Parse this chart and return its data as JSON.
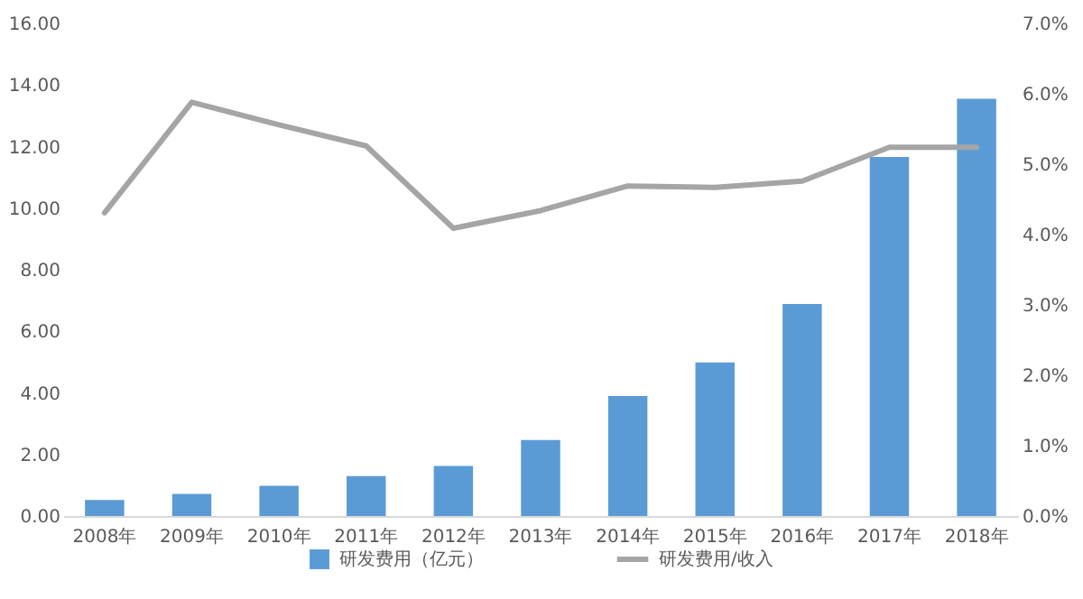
{
  "chart_data": {
    "type": "bar",
    "categories": [
      "2008年",
      "2009年",
      "2010年",
      "2011年",
      "2012年",
      "2013年",
      "2014年",
      "2015年",
      "2016年",
      "2017年",
      "2018年"
    ],
    "series": [
      {
        "name": "研发费用（亿元）",
        "color": "#5b9bd5",
        "values": [
          0.52,
          0.72,
          0.98,
          1.3,
          1.63,
          2.47,
          3.9,
          4.99,
          6.89,
          11.66,
          13.55
        ]
      },
      {
        "name": "研发费用/收入",
        "type": "line",
        "axis": "y2",
        "color": "#a5a5a5",
        "values": [
          4.31,
          5.88,
          5.56,
          5.26,
          4.09,
          4.34,
          4.69,
          4.67,
          4.76,
          5.24,
          5.24
        ]
      }
    ],
    "ylim": [
      0,
      16
    ],
    "yticks": [
      {
        "value": 0,
        "label": "0.00"
      },
      {
        "value": 2,
        "label": "2.00"
      },
      {
        "value": 4,
        "label": "4.00"
      },
      {
        "value": 6,
        "label": "6.00"
      },
      {
        "value": 8,
        "label": "8.00"
      },
      {
        "value": 10,
        "label": "10.00"
      },
      {
        "value": 12,
        "label": "12.00"
      },
      {
        "value": 14,
        "label": "14.00"
      },
      {
        "value": 16,
        "label": "16.00"
      }
    ],
    "y2lim": [
      0,
      7
    ],
    "y2ticks": [
      {
        "value": 0,
        "label": "0.0%"
      },
      {
        "value": 1,
        "label": "1.0%"
      },
      {
        "value": 2,
        "label": "2.0%"
      },
      {
        "value": 3,
        "label": "3.0%"
      },
      {
        "value": 4,
        "label": "4.0%"
      },
      {
        "value": 5,
        "label": "5.0%"
      },
      {
        "value": 6,
        "label": "6.0%"
      },
      {
        "value": 7,
        "label": "7.0%"
      }
    ],
    "grid": false,
    "legend": "bottom",
    "marker": "none",
    "line_style": "solid"
  }
}
